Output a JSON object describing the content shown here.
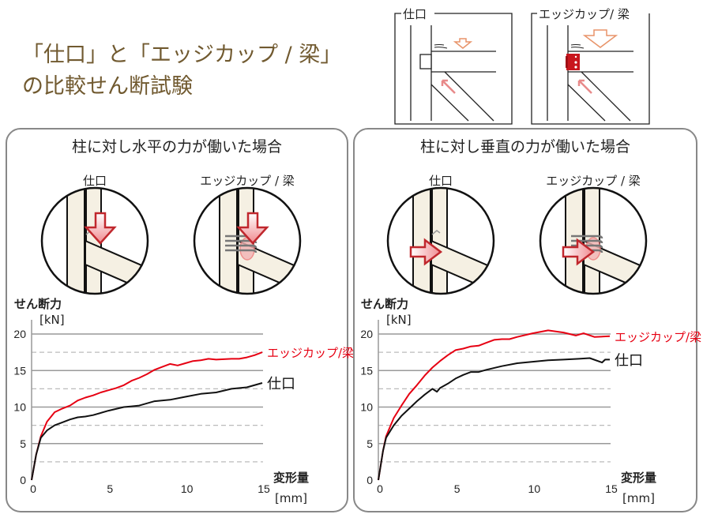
{
  "title": {
    "line1": "「仕口」と「エッジカップ / 梁」",
    "line2": "の比較せん断試験"
  },
  "top_diagrams": [
    {
      "label": "仕口"
    },
    {
      "label": "エッジカップ/ 梁"
    }
  ],
  "colors": {
    "title": "#715a30",
    "edgecup": "#e60012",
    "shiguchi": "#111111",
    "panel_border": "#888888",
    "timber": "#f5f0e3",
    "arrow": "#c0272d"
  },
  "panels": [
    {
      "title": "柱に対し水平の力が働いた場合",
      "diagrams": [
        {
          "label": "仕口",
          "arrow": "down"
        },
        {
          "label": "エッジカップ / 梁",
          "arrow": "down"
        }
      ]
    },
    {
      "title": "柱に対し垂直の力が働いた場合",
      "diagrams": [
        {
          "label": "仕口",
          "arrow": "right"
        },
        {
          "label": "エッジカップ / 梁",
          "arrow": "right"
        }
      ]
    }
  ],
  "chart_data": [
    {
      "type": "line",
      "ylabel": "せん断力",
      "yunit": "[kN]",
      "xlabel": "変形量",
      "xunit": "[mm]",
      "xlim": [
        0,
        15
      ],
      "ylim": [
        0,
        20
      ],
      "xticks": [
        "0",
        "5",
        "10",
        "15"
      ],
      "yticks": [
        "0",
        "5",
        "10",
        "15",
        "20"
      ],
      "minor_grid": [
        2.5,
        7.5,
        12.5,
        17.5
      ],
      "grid": true,
      "series": [
        {
          "name": "エッジカップ/梁",
          "color": "#e60012",
          "x": [
            0,
            0.3,
            0.6,
            1,
            1.5,
            2,
            2.5,
            3,
            3.5,
            4,
            4.5,
            5,
            5.5,
            6,
            6.5,
            7,
            7.5,
            8,
            8.5,
            9,
            9.5,
            10,
            10.5,
            11,
            11.5,
            12,
            13,
            13.5,
            14,
            14.5,
            15
          ],
          "y": [
            0,
            3.5,
            6,
            8,
            9.3,
            9.8,
            10.2,
            10.9,
            11.3,
            11.6,
            12,
            12.3,
            12.6,
            13,
            13.6,
            14,
            14.5,
            15.1,
            15.5,
            15.9,
            15.7,
            16,
            16.3,
            16.4,
            16.6,
            16.5,
            16.6,
            16.6,
            16.8,
            17.1,
            17.5
          ]
        },
        {
          "name": "仕口",
          "color": "#111111",
          "x": [
            0,
            0.3,
            0.6,
            1,
            1.5,
            2,
            2.5,
            3,
            3.5,
            4,
            5,
            6,
            6.5,
            7,
            8,
            9,
            10,
            11,
            12,
            13,
            14,
            15
          ],
          "y": [
            0,
            3.5,
            5.8,
            6.8,
            7.5,
            7.9,
            8.3,
            8.6,
            8.7,
            8.9,
            9.5,
            10,
            10.1,
            10.2,
            10.8,
            11,
            11.4,
            11.8,
            12,
            12.5,
            12.7,
            13.3
          ]
        }
      ]
    },
    {
      "type": "line",
      "ylabel": "せん断力",
      "yunit": "[kN]",
      "xlabel": "変形量",
      "xunit": "[mm]",
      "xlim": [
        0,
        15
      ],
      "ylim": [
        0,
        20
      ],
      "xticks": [
        "0",
        "5",
        "10",
        "15"
      ],
      "yticks": [
        "0",
        "5",
        "10",
        "15",
        "20"
      ],
      "minor_grid": [
        2.5,
        7.5,
        12.5,
        17.5
      ],
      "grid": true,
      "series": [
        {
          "name": "エッジカップ/梁",
          "color": "#e60012",
          "x": [
            0,
            0.3,
            0.5,
            1,
            1.5,
            2,
            2.5,
            3,
            3.5,
            4,
            4.5,
            5,
            5.5,
            6,
            6.5,
            7,
            7.5,
            8,
            8.5,
            9,
            10,
            11,
            12,
            12.8,
            13.3,
            14,
            15
          ],
          "y": [
            0,
            4,
            6,
            8.5,
            10.2,
            11.8,
            13,
            14.3,
            15.4,
            16.3,
            17.1,
            17.8,
            18,
            18.3,
            18.4,
            18.8,
            19.2,
            19.3,
            19.3,
            19.6,
            20.1,
            20.5,
            20.2,
            19.8,
            20.1,
            19.6,
            19.7
          ]
        },
        {
          "name": "仕口",
          "color": "#111111",
          "x": [
            0,
            0.3,
            0.5,
            1,
            1.5,
            2,
            2.5,
            3,
            3.5,
            3.8,
            4,
            4.5,
            5,
            5.5,
            6,
            6.5,
            7,
            8,
            9,
            10,
            11,
            12,
            13,
            13.7,
            14.5,
            14.7,
            15
          ],
          "y": [
            0,
            4,
            5.8,
            7.5,
            8.8,
            9.8,
            10.8,
            11.7,
            12.5,
            12.1,
            12.6,
            13.2,
            13.9,
            14.4,
            14.8,
            14.8,
            15.1,
            15.6,
            16,
            16.2,
            16.4,
            16.5,
            16.6,
            16.7,
            16.1,
            16.5,
            16.5
          ]
        }
      ]
    }
  ]
}
